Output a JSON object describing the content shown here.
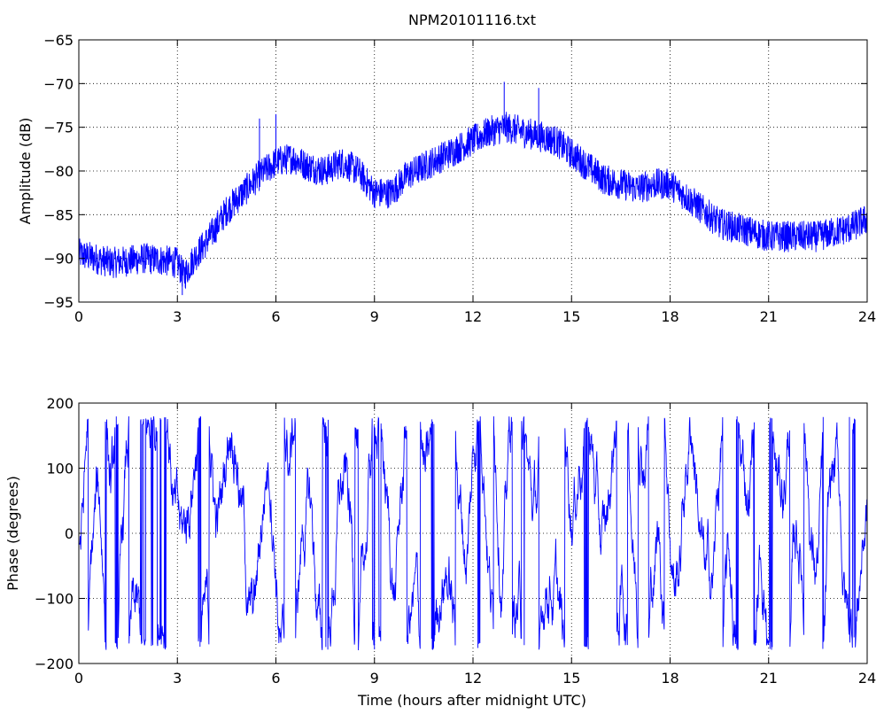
{
  "figure_title": "NPM20101116.txt",
  "chart_data": [
    {
      "type": "line",
      "title": "NPM20101116.txt",
      "xlabel": "",
      "ylabel": "Amplitude (dB)",
      "xlim": [
        0,
        24
      ],
      "ylim": [
        -95,
        -65
      ],
      "xticks": [
        0,
        3,
        6,
        9,
        12,
        15,
        18,
        21,
        24
      ],
      "yticks": [
        -95,
        -90,
        -85,
        -80,
        -75,
        -70,
        -65
      ],
      "grid": true,
      "color": "#0000ff",
      "series": [
        {
          "x": [
            0,
            0.5,
            1,
            1.5,
            2,
            2.5,
            3,
            3.2,
            3.5,
            4,
            4.5,
            5,
            5.5,
            6,
            6.5,
            7,
            7.5,
            8,
            8.5,
            9,
            9.5,
            10,
            10.5,
            11,
            11.5,
            12,
            12.5,
            13,
            13.5,
            14,
            14.5,
            15,
            15.5,
            16,
            16.5,
            17,
            17.5,
            18,
            18.5,
            19,
            19.5,
            20,
            20.5,
            21,
            21.5,
            22,
            22.5,
            23,
            23.5,
            24
          ],
          "y": [
            -89.5,
            -90,
            -90.5,
            -90.3,
            -90,
            -90.2,
            -90.5,
            -92,
            -90,
            -87.5,
            -84.5,
            -82.5,
            -80.5,
            -79,
            -78.5,
            -79.5,
            -80,
            -79,
            -80,
            -82.5,
            -82.5,
            -80.5,
            -79.5,
            -78.5,
            -77.5,
            -76.5,
            -75.5,
            -75,
            -75.5,
            -76,
            -76.5,
            -78,
            -79.5,
            -81,
            -81.5,
            -82,
            -81.5,
            -81.5,
            -83,
            -84.5,
            -86,
            -86.5,
            -87,
            -87.5,
            -87.5,
            -87.5,
            -87.5,
            -87,
            -86.5,
            -85.5
          ],
          "noise_amplitude_db": 1.8,
          "spikes": [
            {
              "x": 5.5,
              "y": -74
            },
            {
              "x": 6.0,
              "y": -73.5
            },
            {
              "x": 12.95,
              "y": -69.8
            },
            {
              "x": 14.0,
              "y": -70.5
            },
            {
              "x": 3.15,
              "y": -94.2
            }
          ]
        }
      ]
    },
    {
      "type": "line",
      "title": "",
      "xlabel": "Time (hours after midnight UTC)",
      "ylabel": "Phase (degrees)",
      "xlim": [
        0,
        24
      ],
      "ylim": [
        -200,
        200
      ],
      "xticks": [
        0,
        3,
        6,
        9,
        12,
        15,
        18,
        21,
        24
      ],
      "yticks": [
        -200,
        -100,
        0,
        100,
        200
      ],
      "grid": true,
      "color": "#0000ff",
      "series": [
        {
          "wrap_range_deg": [
            -180,
            180
          ]
        }
      ]
    }
  ]
}
